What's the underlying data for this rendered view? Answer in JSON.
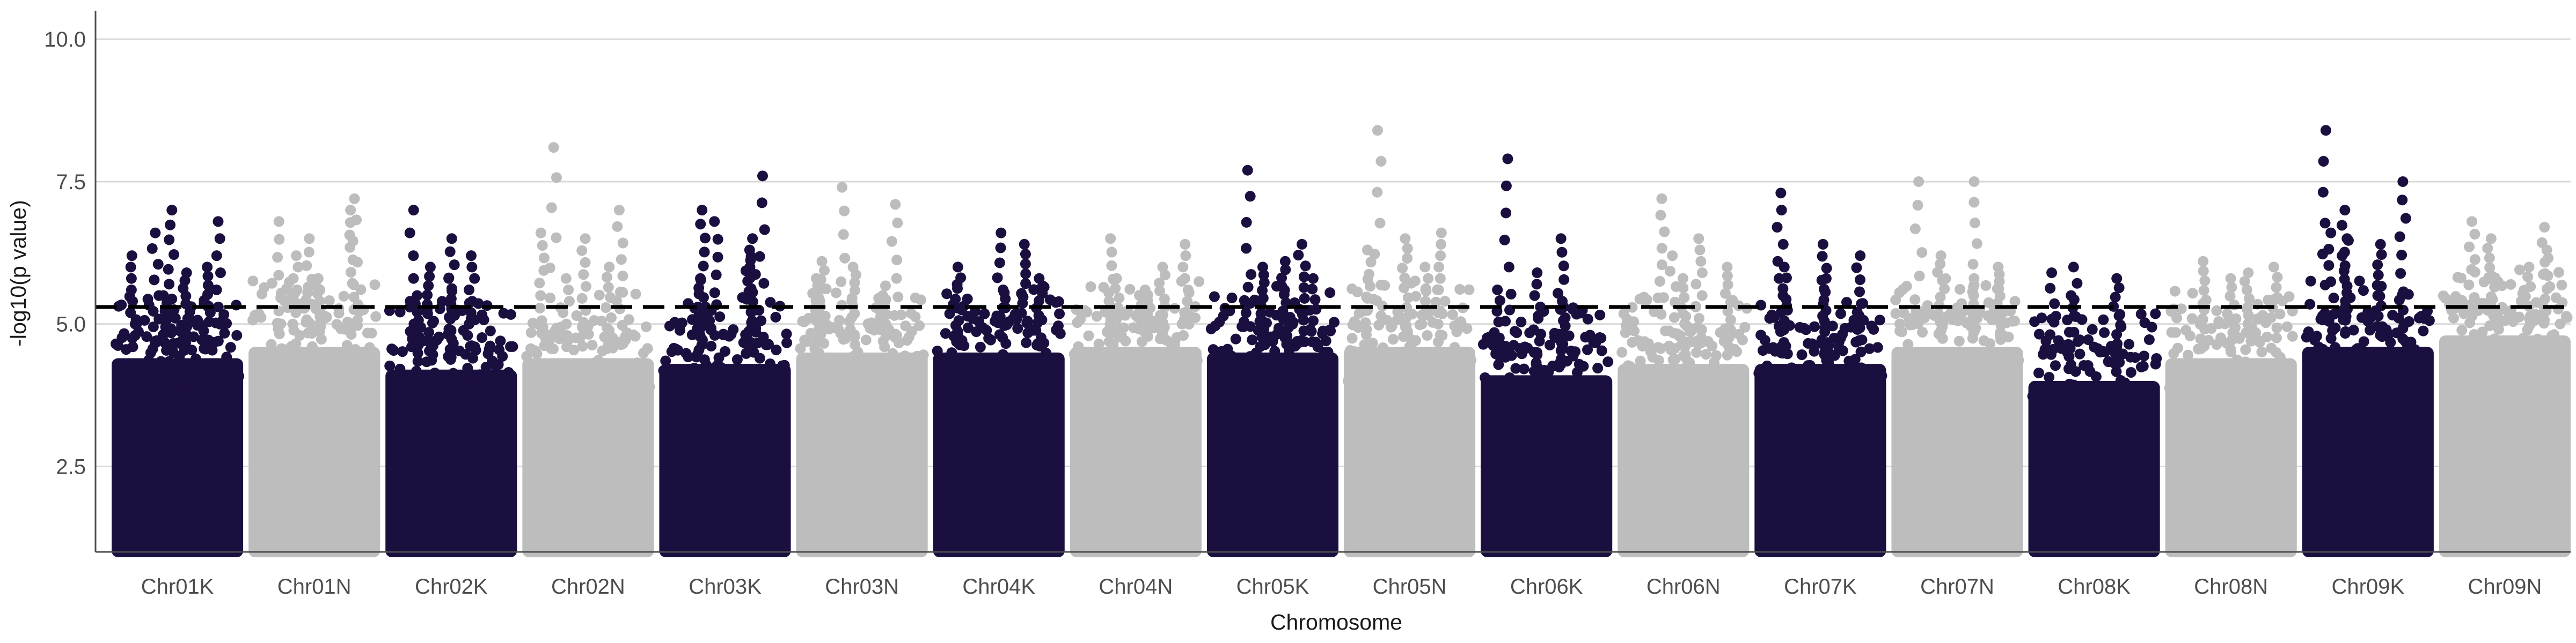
{
  "chart_data": {
    "type": "scatter",
    "title": "",
    "xlabel": "Chromosome",
    "ylabel": "-log10(p value)",
    "ylim": [
      1,
      10.5
    ],
    "yticks": [
      2.5,
      5.0,
      7.5,
      10.0
    ],
    "y_tick_labels": [
      "2.5",
      "5.0",
      "7.5",
      "10.0"
    ],
    "grid": "horizontal major",
    "legend": "none",
    "threshold": {
      "value": 5.3,
      "style": "dashed",
      "color": "#000000"
    },
    "colors": {
      "odd": "#1b0f3f",
      "even": "#bdbdbd",
      "grid": "#d9d9d9",
      "axis": "#4d4d4d"
    },
    "point_min": 1,
    "categories": [
      "Chr01K",
      "Chr01N",
      "Chr02K",
      "Chr02N",
      "Chr03K",
      "Chr03N",
      "Chr04K",
      "Chr04N",
      "Chr05K",
      "Chr05N",
      "Chr06K",
      "Chr06N",
      "Chr07K",
      "Chr07N",
      "Chr08K",
      "Chr08N",
      "Chr09K",
      "Chr09N"
    ],
    "series": [
      {
        "category": "Chr01K",
        "color": "odd",
        "bulk_top": 4.4,
        "peaks": [
          6.6,
          6.8,
          7.0,
          6.2,
          5.9,
          5.5,
          6.0
        ]
      },
      {
        "category": "Chr01N",
        "color": "even",
        "bulk_top": 4.6,
        "peaks": [
          6.8,
          7.0,
          6.5,
          7.2,
          5.8,
          6.2
        ]
      },
      {
        "category": "Chr02K",
        "color": "odd",
        "bulk_top": 4.2,
        "peaks": [
          6.0,
          6.2,
          5.8,
          7.0,
          6.5,
          5.5
        ]
      },
      {
        "category": "Chr02N",
        "color": "even",
        "bulk_top": 4.4,
        "peaks": [
          8.1,
          7.0,
          6.5,
          6.6,
          6.0,
          5.8
        ]
      },
      {
        "category": "Chr03K",
        "color": "odd",
        "bulk_top": 4.3,
        "peaks": [
          7.0,
          6.5,
          6.8,
          7.6,
          6.3,
          5.8,
          6.0
        ]
      },
      {
        "category": "Chr03N",
        "color": "even",
        "bulk_top": 4.5,
        "peaks": [
          7.4,
          7.1,
          6.0,
          5.8,
          5.5,
          6.1
        ]
      },
      {
        "category": "Chr04K",
        "color": "odd",
        "bulk_top": 4.5,
        "peaks": [
          6.0,
          6.4,
          6.6,
          5.8,
          5.6
        ]
      },
      {
        "category": "Chr04N",
        "color": "even",
        "bulk_top": 4.6,
        "peaks": [
          6.5,
          6.0,
          5.8,
          6.4,
          5.6
        ]
      },
      {
        "category": "Chr05K",
        "color": "odd",
        "bulk_top": 4.5,
        "peaks": [
          7.7,
          6.4,
          6.0,
          5.8,
          6.1
        ]
      },
      {
        "category": "Chr05N",
        "color": "even",
        "bulk_top": 4.6,
        "peaks": [
          8.4,
          6.6,
          6.5,
          6.3,
          6.0
        ]
      },
      {
        "category": "Chr06K",
        "color": "odd",
        "bulk_top": 4.1,
        "peaks": [
          7.9,
          6.5,
          5.9,
          5.6,
          5.4
        ]
      },
      {
        "category": "Chr06N",
        "color": "even",
        "bulk_top": 4.3,
        "peaks": [
          7.2,
          6.5,
          6.2,
          6.0,
          5.8
        ]
      },
      {
        "category": "Chr07K",
        "color": "odd",
        "bulk_top": 4.3,
        "peaks": [
          7.3,
          6.2,
          6.4,
          6.0,
          5.8
        ]
      },
      {
        "category": "Chr07N",
        "color": "even",
        "bulk_top": 4.6,
        "peaks": [
          7.5,
          7.5,
          6.2,
          6.0,
          5.8
        ]
      },
      {
        "category": "Chr08K",
        "color": "odd",
        "bulk_top": 4.0,
        "peaks": [
          6.0,
          5.8,
          5.5,
          5.9
        ]
      },
      {
        "category": "Chr08N",
        "color": "even",
        "bulk_top": 4.4,
        "peaks": [
          6.1,
          5.9,
          5.8,
          6.0
        ]
      },
      {
        "category": "Chr09K",
        "color": "odd",
        "bulk_top": 4.6,
        "peaks": [
          8.4,
          7.5,
          7.0,
          6.6,
          6.4,
          6.5
        ]
      },
      {
        "category": "Chr09N",
        "color": "even",
        "bulk_top": 4.8,
        "peaks": [
          6.8,
          6.7,
          6.5,
          6.3,
          6.0
        ]
      }
    ]
  }
}
